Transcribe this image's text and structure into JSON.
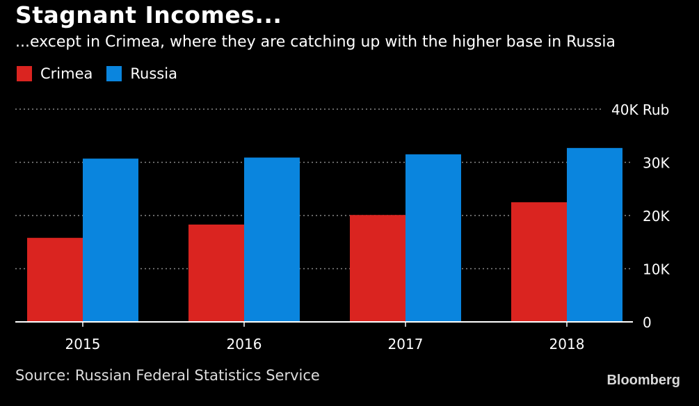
{
  "header": {
    "title": "Stagnant Incomes...",
    "subtitle": "...except in Crimea, where they are catching up with the higher base in Russia"
  },
  "footer": {
    "source": "Source: Russian Federal Statistics Service",
    "brand": "Bloomberg"
  },
  "colors": {
    "crimea": "#DA2420",
    "russia": "#0A85DE",
    "grid": "#8a8a8a",
    "axis": "#ffffff"
  },
  "chart_data": {
    "type": "bar",
    "categories": [
      "2015",
      "2016",
      "2017",
      "2018"
    ],
    "series": [
      {
        "name": "Crimea",
        "values": [
          15800,
          18300,
          20100,
          22500
        ]
      },
      {
        "name": "Russia",
        "values": [
          30700,
          30900,
          31500,
          32700
        ]
      }
    ],
    "ylim": [
      0,
      40000
    ],
    "yticks": [
      0,
      10000,
      20000,
      30000,
      40000
    ],
    "ytick_labels": [
      "0",
      "10K",
      "20K",
      "30K",
      "40K Rub"
    ],
    "grid": true,
    "legend_position": "top-left"
  }
}
